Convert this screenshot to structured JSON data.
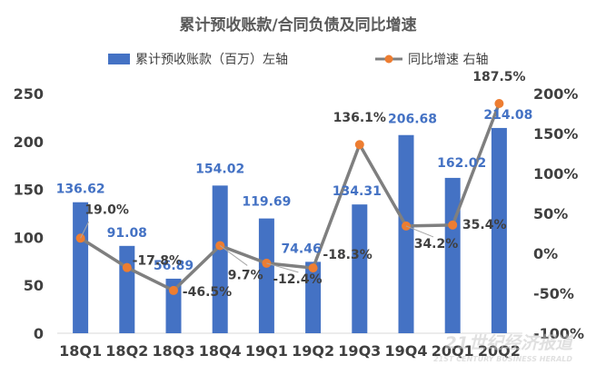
{
  "chart_data": {
    "type": "bar",
    "title": "累计预收账款/合同负债及同比增速",
    "categories": [
      "18Q1",
      "18Q2",
      "18Q3",
      "18Q4",
      "19Q1",
      "19Q2",
      "19Q3",
      "19Q4",
      "20Q1",
      "20Q2"
    ],
    "series": [
      {
        "name": "累计预收账款（百万）左轴",
        "type": "bar",
        "axis": "left",
        "color": "#4472c4",
        "values": [
          136.62,
          91.08,
          56.89,
          154.02,
          119.69,
          74.46,
          134.31,
          206.68,
          162.02,
          214.08
        ],
        "labels": [
          "136.62",
          "91.08",
          "56.89",
          "154.02",
          "119.69",
          "74.46",
          "134.31",
          "206.68",
          "162.02",
          "214.08"
        ]
      },
      {
        "name": "同比增速 右轴",
        "type": "line",
        "axis": "right",
        "color": "#7f7f7f",
        "marker_color": "#ed7d31",
        "values": [
          19.0,
          -17.8,
          -46.5,
          9.7,
          -12.4,
          -18.3,
          136.1,
          34.2,
          35.4,
          187.5
        ],
        "labels": [
          "19.0%",
          "-17.8%",
          "-46.5%",
          "9.7%",
          "-12.4%",
          "-18.3%",
          "136.1%",
          "34.2%",
          "35.4%",
          "187.5%"
        ]
      }
    ],
    "y_left": {
      "ylim": [
        0,
        250
      ],
      "ticks": [
        "0",
        "50",
        "100",
        "150",
        "200",
        "250"
      ]
    },
    "y_right": {
      "ylim": [
        -100,
        200
      ],
      "ticks": [
        "-100%",
        "-50%",
        "0%",
        "50%",
        "100%",
        "150%",
        "200%"
      ]
    },
    "grid": false,
    "legend_position": "top"
  },
  "watermark": {
    "text": "21世纪经济报道",
    "subtext": "21ST CENTURY BUSINESS HERALD"
  }
}
